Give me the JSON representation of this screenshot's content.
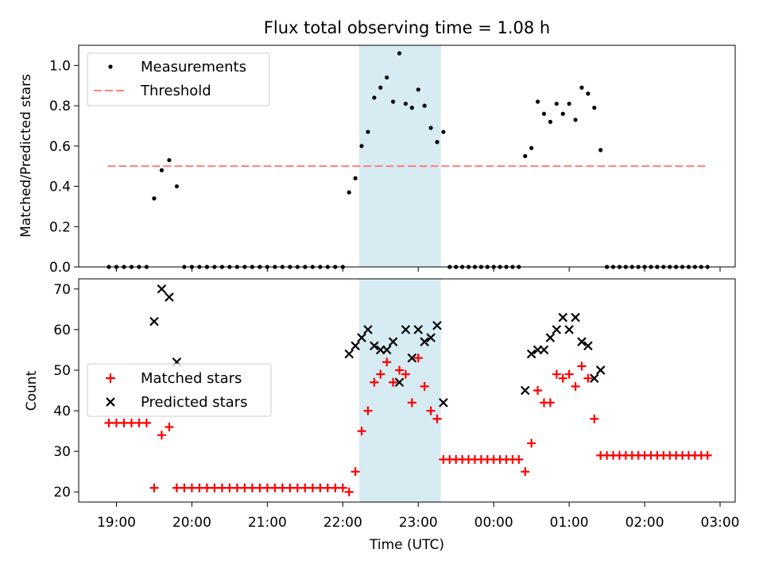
{
  "figure": {
    "title": "Flux total observing time = 1.08 h"
  },
  "chart_data": [
    {
      "type": "scatter",
      "ylabel": "Matched/Predicted stars",
      "ylim": [
        0,
        1.1
      ],
      "yticks": [
        "0.0",
        "0.2",
        "0.4",
        "0.6",
        "0.8",
        "1.0"
      ],
      "ytick_values": [
        0,
        0.2,
        0.4,
        0.6,
        0.8,
        1.0
      ],
      "legend_position": "upper-left",
      "legend": {
        "measurements": "Measurements",
        "threshold": "Threshold"
      },
      "threshold": {
        "value": 0.5,
        "x_start": "18:53",
        "x_end": "02:50",
        "color": "#ff7f7f",
        "style": "dashed"
      },
      "highlight": {
        "x_start": "22:13",
        "x_end": "23:18",
        "color": "#add8e6"
      },
      "series": [
        {
          "name": "Measurements",
          "marker": "dot",
          "color": "#000000",
          "points": [
            [
              "18:54",
              0
            ],
            [
              "19:00",
              0
            ],
            [
              "19:06",
              0
            ],
            [
              "19:12",
              0
            ],
            [
              "19:18",
              0
            ],
            [
              "19:24",
              0
            ],
            [
              "19:30",
              0.34
            ],
            [
              "19:36",
              0.48
            ],
            [
              "19:42",
              0.53
            ],
            [
              "19:48",
              0.4
            ],
            [
              "19:54",
              0
            ],
            [
              "20:00",
              0
            ],
            [
              "20:06",
              0
            ],
            [
              "20:12",
              0
            ],
            [
              "20:18",
              0
            ],
            [
              "20:24",
              0
            ],
            [
              "20:30",
              0
            ],
            [
              "20:36",
              0
            ],
            [
              "20:42",
              0
            ],
            [
              "20:48",
              0
            ],
            [
              "20:54",
              0
            ],
            [
              "21:00",
              0
            ],
            [
              "21:06",
              0
            ],
            [
              "21:12",
              0
            ],
            [
              "21:18",
              0
            ],
            [
              "21:24",
              0
            ],
            [
              "21:30",
              0
            ],
            [
              "21:36",
              0
            ],
            [
              "21:42",
              0
            ],
            [
              "21:48",
              0
            ],
            [
              "21:54",
              0
            ],
            [
              "22:00",
              0
            ],
            [
              "22:05",
              0.37
            ],
            [
              "22:10",
              0.44
            ],
            [
              "22:15",
              0.6
            ],
            [
              "22:20",
              0.67
            ],
            [
              "22:25",
              0.84
            ],
            [
              "22:30",
              0.89
            ],
            [
              "22:35",
              0.94
            ],
            [
              "22:40",
              0.82
            ],
            [
              "22:45",
              1.06
            ],
            [
              "22:50",
              0.81
            ],
            [
              "22:55",
              0.79
            ],
            [
              "23:00",
              0.88
            ],
            [
              "23:05",
              0.8
            ],
            [
              "23:10",
              0.69
            ],
            [
              "23:15",
              0.62
            ],
            [
              "23:20",
              0.67
            ],
            [
              "23:25",
              0
            ],
            [
              "23:30",
              0
            ],
            [
              "23:35",
              0
            ],
            [
              "23:40",
              0
            ],
            [
              "23:45",
              0
            ],
            [
              "23:50",
              0
            ],
            [
              "23:55",
              0
            ],
            [
              "00:00",
              0
            ],
            [
              "00:05",
              0
            ],
            [
              "00:10",
              0
            ],
            [
              "00:15",
              0
            ],
            [
              "00:20",
              0
            ],
            [
              "00:25",
              0.55
            ],
            [
              "00:30",
              0.59
            ],
            [
              "00:35",
              0.82
            ],
            [
              "00:40",
              0.76
            ],
            [
              "00:45",
              0.72
            ],
            [
              "00:50",
              0.81
            ],
            [
              "00:55",
              0.76
            ],
            [
              "01:00",
              0.81
            ],
            [
              "01:05",
              0.73
            ],
            [
              "01:10",
              0.89
            ],
            [
              "01:15",
              0.86
            ],
            [
              "01:20",
              0.79
            ],
            [
              "01:25",
              0.58
            ],
            [
              "01:30",
              0
            ],
            [
              "01:35",
              0
            ],
            [
              "01:40",
              0
            ],
            [
              "01:45",
              0
            ],
            [
              "01:50",
              0
            ],
            [
              "01:55",
              0
            ],
            [
              "02:00",
              0
            ],
            [
              "02:05",
              0
            ],
            [
              "02:10",
              0
            ],
            [
              "02:15",
              0
            ],
            [
              "02:20",
              0
            ],
            [
              "02:25",
              0
            ],
            [
              "02:30",
              0
            ],
            [
              "02:35",
              0
            ],
            [
              "02:40",
              0
            ],
            [
              "02:45",
              0
            ],
            [
              "02:50",
              0
            ]
          ]
        }
      ]
    },
    {
      "type": "scatter",
      "xlabel": "Time (UTC)",
      "ylabel": "Count",
      "ylim": [
        17.5,
        72.5
      ],
      "yticks": [
        "20",
        "30",
        "40",
        "50",
        "60",
        "70"
      ],
      "ytick_values": [
        20,
        30,
        40,
        50,
        60,
        70
      ],
      "xlim": [
        "18:30",
        "03:12"
      ],
      "xticks": [
        "19:00",
        "20:00",
        "21:00",
        "22:00",
        "23:00",
        "00:00",
        "01:00",
        "02:00",
        "03:00"
      ],
      "legend_position": "center-left",
      "highlight": {
        "x_start": "22:13",
        "x_end": "23:18",
        "color": "#add8e6"
      },
      "series": [
        {
          "name": "Matched stars",
          "marker": "plus",
          "color": "#ff0000",
          "points": [
            [
              "18:54",
              37
            ],
            [
              "19:00",
              37
            ],
            [
              "19:06",
              37
            ],
            [
              "19:12",
              37
            ],
            [
              "19:18",
              37
            ],
            [
              "19:24",
              37
            ],
            [
              "19:30",
              21
            ],
            [
              "19:36",
              34
            ],
            [
              "19:42",
              36
            ],
            [
              "19:48",
              21
            ],
            [
              "19:54",
              21
            ],
            [
              "20:00",
              21
            ],
            [
              "20:06",
              21
            ],
            [
              "20:12",
              21
            ],
            [
              "20:18",
              21
            ],
            [
              "20:24",
              21
            ],
            [
              "20:30",
              21
            ],
            [
              "20:36",
              21
            ],
            [
              "20:42",
              21
            ],
            [
              "20:48",
              21
            ],
            [
              "20:54",
              21
            ],
            [
              "21:00",
              21
            ],
            [
              "21:06",
              21
            ],
            [
              "21:12",
              21
            ],
            [
              "21:18",
              21
            ],
            [
              "21:24",
              21
            ],
            [
              "21:30",
              21
            ],
            [
              "21:36",
              21
            ],
            [
              "21:42",
              21
            ],
            [
              "21:48",
              21
            ],
            [
              "21:54",
              21
            ],
            [
              "22:00",
              21
            ],
            [
              "22:05",
              20
            ],
            [
              "22:10",
              25
            ],
            [
              "22:15",
              35
            ],
            [
              "22:20",
              40
            ],
            [
              "22:25",
              47
            ],
            [
              "22:30",
              49
            ],
            [
              "22:35",
              52
            ],
            [
              "22:40",
              47
            ],
            [
              "22:45",
              50
            ],
            [
              "22:50",
              49
            ],
            [
              "22:55",
              42
            ],
            [
              "23:00",
              53
            ],
            [
              "23:05",
              46
            ],
            [
              "23:10",
              40
            ],
            [
              "23:15",
              38
            ],
            [
              "23:20",
              28
            ],
            [
              "23:25",
              28
            ],
            [
              "23:30",
              28
            ],
            [
              "23:35",
              28
            ],
            [
              "23:40",
              28
            ],
            [
              "23:45",
              28
            ],
            [
              "23:50",
              28
            ],
            [
              "23:55",
              28
            ],
            [
              "00:00",
              28
            ],
            [
              "00:05",
              28
            ],
            [
              "00:10",
              28
            ],
            [
              "00:15",
              28
            ],
            [
              "00:20",
              28
            ],
            [
              "00:25",
              25
            ],
            [
              "00:30",
              32
            ],
            [
              "00:35",
              45
            ],
            [
              "00:40",
              42
            ],
            [
              "00:45",
              42
            ],
            [
              "00:50",
              49
            ],
            [
              "00:55",
              48
            ],
            [
              "01:00",
              49
            ],
            [
              "01:05",
              46
            ],
            [
              "01:10",
              51
            ],
            [
              "01:15",
              48
            ],
            [
              "01:20",
              38
            ],
            [
              "01:25",
              29
            ],
            [
              "01:30",
              29
            ],
            [
              "01:35",
              29
            ],
            [
              "01:40",
              29
            ],
            [
              "01:45",
              29
            ],
            [
              "01:50",
              29
            ],
            [
              "01:55",
              29
            ],
            [
              "02:00",
              29
            ],
            [
              "02:05",
              29
            ],
            [
              "02:10",
              29
            ],
            [
              "02:15",
              29
            ],
            [
              "02:20",
              29
            ],
            [
              "02:25",
              29
            ],
            [
              "02:30",
              29
            ],
            [
              "02:35",
              29
            ],
            [
              "02:40",
              29
            ],
            [
              "02:45",
              29
            ],
            [
              "02:50",
              29
            ]
          ]
        },
        {
          "name": "Predicted stars",
          "marker": "x",
          "color": "#000000",
          "points": [
            [
              "19:30",
              62
            ],
            [
              "19:36",
              70
            ],
            [
              "19:42",
              68
            ],
            [
              "19:48",
              52
            ],
            [
              "22:05",
              54
            ],
            [
              "22:10",
              56
            ],
            [
              "22:15",
              58
            ],
            [
              "22:20",
              60
            ],
            [
              "22:25",
              56
            ],
            [
              "22:30",
              55
            ],
            [
              "22:35",
              55
            ],
            [
              "22:40",
              57
            ],
            [
              "22:45",
              47
            ],
            [
              "22:50",
              60
            ],
            [
              "22:55",
              53
            ],
            [
              "23:00",
              60
            ],
            [
              "23:05",
              57
            ],
            [
              "23:10",
              58
            ],
            [
              "23:15",
              61
            ],
            [
              "23:20",
              42
            ],
            [
              "00:25",
              45
            ],
            [
              "00:30",
              54
            ],
            [
              "00:35",
              55
            ],
            [
              "00:40",
              55
            ],
            [
              "00:45",
              58
            ],
            [
              "00:50",
              60
            ],
            [
              "00:55",
              63
            ],
            [
              "01:00",
              60
            ],
            [
              "01:05",
              63
            ],
            [
              "01:10",
              57
            ],
            [
              "01:15",
              56
            ],
            [
              "01:20",
              48
            ],
            [
              "01:25",
              50
            ]
          ]
        }
      ]
    }
  ]
}
